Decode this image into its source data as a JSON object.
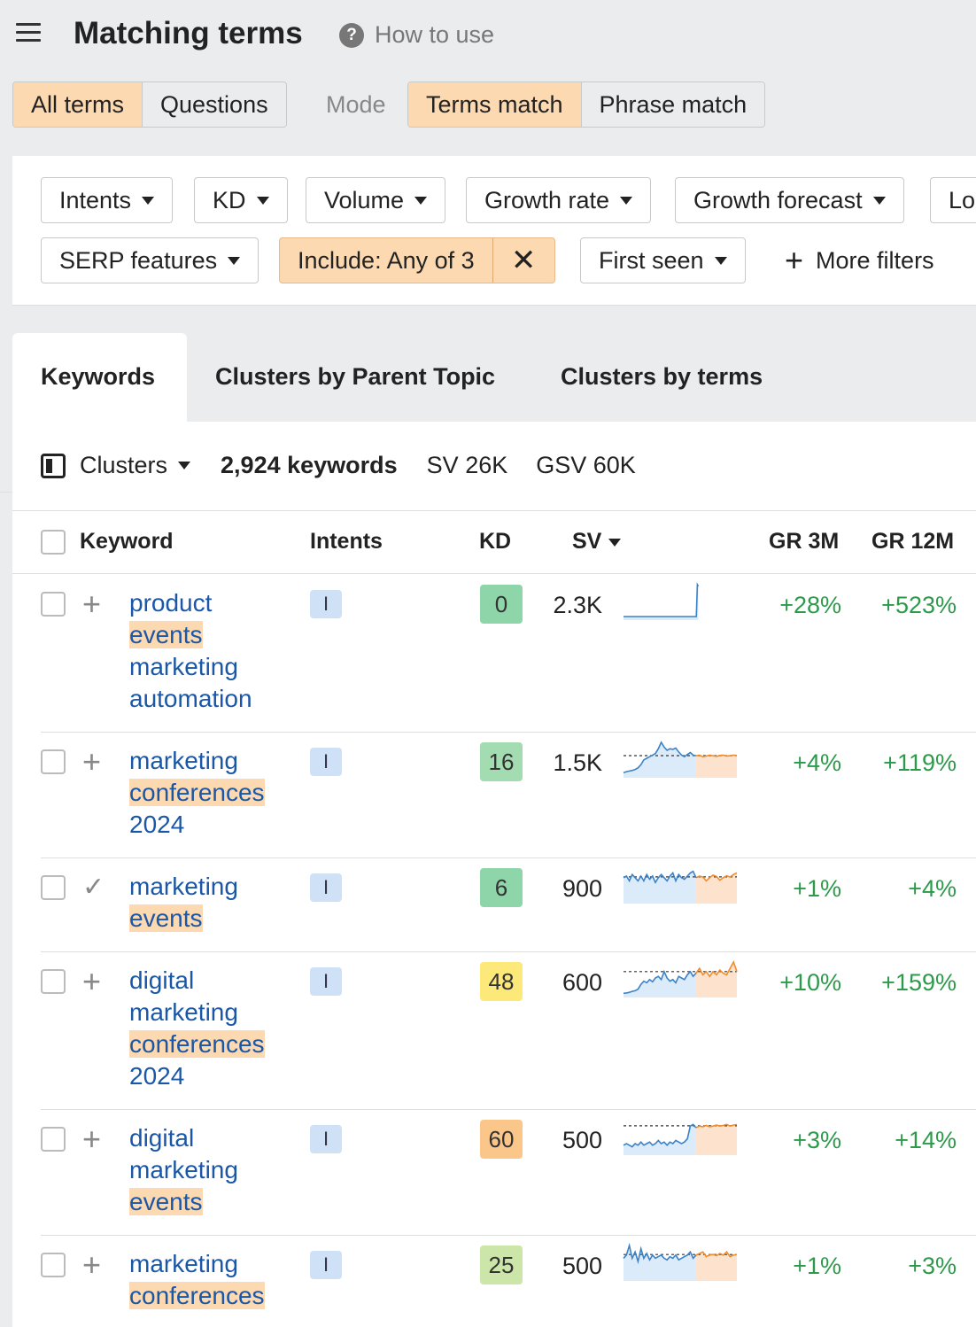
{
  "header": {
    "title": "Matching terms",
    "help_label": "How to use",
    "help_icon": "question-circle-icon"
  },
  "mode_row": {
    "segments": [
      "All terms",
      "Questions"
    ],
    "mode_label": "Mode",
    "match": [
      "Terms match",
      "Phrase match"
    ],
    "active_segment": "All terms",
    "active_match": "Terms match"
  },
  "filters": {
    "row1": [
      "Intents",
      "KD",
      "Volume",
      "Growth rate",
      "Growth forecast",
      "Lo"
    ],
    "row2": {
      "serp": "SERP features",
      "include": "Include: Any of 3",
      "first_seen": "First seen",
      "more": "More filters"
    }
  },
  "tabs": [
    "Keywords",
    "Clusters by Parent Topic",
    "Clusters by terms"
  ],
  "summary": {
    "clusters_label": "Clusters",
    "keywords": "2,924 keywords",
    "sv": "SV 26K",
    "gsv": "GSV 60K"
  },
  "table": {
    "columns": [
      "Keyword",
      "Intents",
      "KD",
      "SV",
      "GR 3M",
      "GR 12M"
    ],
    "rows": [
      {
        "lines": [
          [
            "product",
            false
          ],
          [
            "events",
            true
          ],
          [
            "marketing",
            false
          ],
          [
            "automation",
            false
          ]
        ],
        "added": false,
        "intent": "I",
        "kd": "0",
        "kd_color": "#8fd5aa",
        "sv": "2.3K",
        "trend": [
          0,
          0,
          0,
          0,
          0,
          0,
          0,
          0,
          0,
          0,
          0,
          0,
          0,
          0,
          0,
          0,
          0,
          0,
          0,
          0,
          0,
          0,
          0,
          0,
          0,
          0,
          0,
          0,
          0,
          0,
          0,
          0,
          0,
          0,
          0,
          0,
          0,
          0,
          0,
          0,
          0,
          0,
          0,
          0,
          0,
          0,
          0,
          0,
          0,
          0,
          0,
          0,
          0,
          0,
          0,
          0,
          0,
          0,
          0,
          0,
          0,
          0,
          0,
          0,
          0,
          0,
          0,
          0,
          0,
          0,
          0,
          0,
          0,
          0,
          1,
          0.95
        ],
        "forecast": [],
        "gr3": "+28%",
        "gr12": "+523%"
      },
      {
        "lines": [
          [
            "marketing",
            false
          ],
          [
            "conferences",
            true
          ],
          [
            "2024",
            false
          ]
        ],
        "added": false,
        "intent": "I",
        "kd": "16",
        "kd_color": "#a3dcb1",
        "sv": "1.5K",
        "trend": [
          0.05,
          0.08,
          0.1,
          0.12,
          0.15,
          0.2,
          0.3,
          0.45,
          0.5,
          0.55,
          0.6,
          0.65,
          0.8,
          1,
          0.85,
          0.75,
          0.8,
          0.78,
          0.82,
          0.7,
          0.6,
          0.55,
          0.62,
          0.68,
          0.6,
          0.58
        ],
        "forecast": [
          0.58,
          0.6,
          0.55,
          0.57,
          0.6,
          0.58,
          0.56,
          0.59,
          0.6,
          0.57,
          0.58,
          0.6,
          0.59
        ],
        "gr3": "+4%",
        "gr12": "+119%"
      },
      {
        "lines": [
          [
            "marketing",
            false
          ],
          [
            "events",
            true
          ]
        ],
        "added": true,
        "intent": "I",
        "kd": "6",
        "kd_color": "#8fd5aa",
        "sv": "900",
        "trend": [
          0.7,
          0.75,
          0.6,
          0.8,
          0.7,
          0.6,
          0.75,
          0.6,
          0.8,
          0.65,
          0.75,
          0.55,
          0.7,
          0.8,
          0.7,
          0.6,
          0.75,
          0.85,
          0.6,
          0.8,
          0.7,
          0.65,
          0.75,
          0.85,
          0.9,
          0.7
        ],
        "forecast": [
          0.7,
          0.75,
          0.72,
          0.6,
          0.7,
          0.78,
          0.74,
          0.62,
          0.7,
          0.76,
          0.72,
          0.8,
          0.85
        ],
        "gr3": "+1%",
        "gr12": "+4%"
      },
      {
        "lines": [
          [
            "digital",
            false
          ],
          [
            "marketing",
            false
          ],
          [
            "conferences",
            true
          ],
          [
            "2024",
            false
          ]
        ],
        "added": false,
        "intent": "I",
        "kd": "48",
        "kd_color": "#fce97a",
        "sv": "600",
        "trend": [
          0.02,
          0.03,
          0.05,
          0.08,
          0.1,
          0.15,
          0.3,
          0.4,
          0.35,
          0.45,
          0.38,
          0.5,
          0.55,
          0.45,
          0.7,
          0.5,
          0.4,
          0.45,
          0.35,
          0.55,
          0.5,
          0.45,
          0.6,
          0.7,
          0.55,
          0.65
        ],
        "forecast": [
          0.65,
          0.8,
          0.6,
          0.7,
          0.55,
          0.7,
          0.6,
          0.75,
          0.65,
          0.6,
          0.8,
          1,
          0.7
        ],
        "gr3": "+10%",
        "gr12": "+159%"
      },
      {
        "lines": [
          [
            "digital",
            false
          ],
          [
            "marketing",
            false
          ],
          [
            "events",
            true
          ]
        ],
        "added": false,
        "intent": "I",
        "kd": "60",
        "kd_color": "#fbc68a",
        "sv": "500",
        "trend": [
          0.2,
          0.25,
          0.2,
          0.15,
          0.25,
          0.2,
          0.3,
          0.2,
          0.25,
          0.3,
          0.2,
          0.25,
          0.35,
          0.25,
          0.3,
          0.2,
          0.3,
          0.25,
          0.35,
          0.3,
          0.25,
          0.3,
          0.4,
          0.8,
          0.85,
          0.75
        ],
        "forecast": [
          0.75,
          0.8,
          0.78,
          0.82,
          0.78,
          0.8,
          0.83,
          0.8,
          0.82,
          0.85,
          0.8,
          0.83,
          0.85
        ],
        "gr3": "+3%",
        "gr12": "+14%"
      },
      {
        "lines": [
          [
            "marketing",
            false
          ],
          [
            "conferences",
            true
          ]
        ],
        "added": false,
        "intent": "I",
        "kd": "25",
        "kd_color": "#cbe6a8",
        "sv": "500",
        "trend": [
          0.6,
          0.7,
          1,
          0.6,
          0.8,
          0.5,
          0.9,
          0.6,
          0.75,
          0.55,
          0.7,
          0.6,
          0.65,
          0.7,
          0.6,
          0.55,
          0.65,
          0.6,
          0.7,
          0.55,
          0.6,
          0.65,
          0.7,
          0.8,
          0.6,
          0.7
        ],
        "forecast": [
          0.7,
          0.75,
          0.8,
          0.65,
          0.7,
          0.72,
          0.68,
          0.75,
          0.7,
          0.8,
          0.65,
          0.7,
          0.72
        ],
        "gr3": "+1%",
        "gr12": "+3%"
      }
    ]
  },
  "colors": {
    "accent_highlight": "#fcd9b0",
    "link": "#1a57a6",
    "growth": "#2c9a4a",
    "trend_line": "#3b82c8",
    "forecast_line": "#f08c2a"
  }
}
